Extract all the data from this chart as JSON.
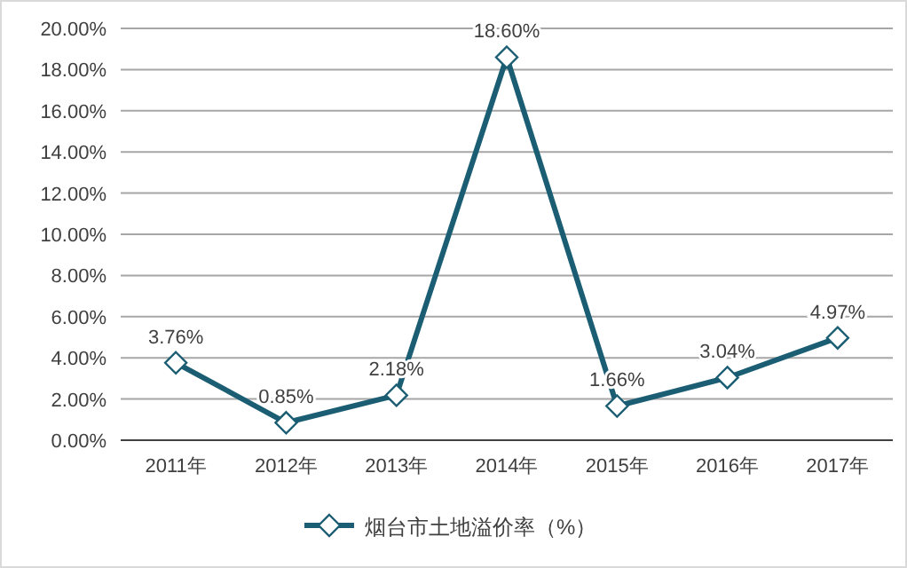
{
  "chart_data": {
    "type": "line",
    "categories": [
      "2011年",
      "2012年",
      "2013年",
      "2014年",
      "2015年",
      "2016年",
      "2017年"
    ],
    "series": [
      {
        "name": "烟台市土地溢价率（%）",
        "color": "#1b5e73",
        "values": [
          3.76,
          0.85,
          2.18,
          18.6,
          1.66,
          3.04,
          4.97
        ],
        "value_labels": [
          "3.76%",
          "0.85%",
          "2.18%",
          "18.60%",
          "1.66%",
          "3.04%",
          "4.97%"
        ]
      }
    ],
    "ylim": [
      0,
      20
    ],
    "yticks": [
      {
        "value": 0,
        "label": "0.00%"
      },
      {
        "value": 2,
        "label": "2.00%"
      },
      {
        "value": 4,
        "label": "4.00%"
      },
      {
        "value": 6,
        "label": "6.00%"
      },
      {
        "value": 8,
        "label": "8.00%"
      },
      {
        "value": 10,
        "label": "10.00%"
      },
      {
        "value": 12,
        "label": "12.00%"
      },
      {
        "value": 14,
        "label": "14.00%"
      },
      {
        "value": 16,
        "label": "16.00%"
      },
      {
        "value": 18,
        "label": "18.00%"
      },
      {
        "value": 20,
        "label": "20.00%"
      }
    ],
    "grid": "y",
    "legend": "bottom",
    "marker": "diamond",
    "line_style": "solid"
  }
}
